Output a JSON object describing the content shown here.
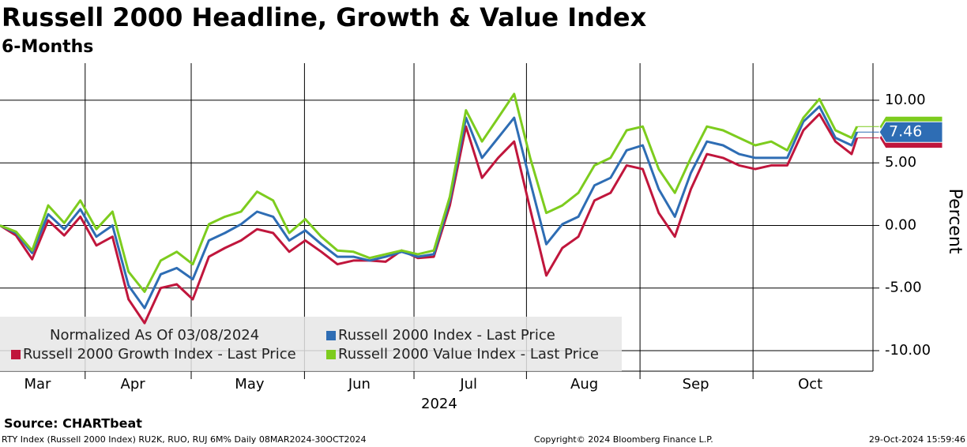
{
  "chart_data": {
    "type": "line",
    "title": "Russell 2000 Headline, Growth & Value Index",
    "subtitle": "6-Months",
    "ylabel": "Percent",
    "xlabel": "2024",
    "note": "Normalized As Of 03/08/2024",
    "source": "Source: CHARTbeat",
    "footer_left": "RTY Index (Russell 2000 Index) RU2K, RUO, RUJ 6M%  Daily 08MAR2024-30OCT2024",
    "footer_center": "Copyright© 2024 Bloomberg Finance L.P.",
    "footer_right": "29-Oct-2024 15:59:46",
    "xlim": [
      0,
      163
    ],
    "xticks": [
      {
        "value": 7,
        "label": "Mar"
      },
      {
        "value": 24.8,
        "label": "Apr"
      },
      {
        "value": 46.6,
        "label": "May"
      },
      {
        "value": 67.1,
        "label": "Jun"
      },
      {
        "value": 87.5,
        "label": "Jul"
      },
      {
        "value": 109.1,
        "label": "Aug"
      },
      {
        "value": 129.9,
        "label": "Sep"
      },
      {
        "value": 151.3,
        "label": "Oct"
      }
    ],
    "ylim": [
      -11.64,
      12.96
    ],
    "yticks": [
      {
        "value": 10,
        "label": "10.00"
      },
      {
        "value": 5,
        "label": "5.00"
      },
      {
        "value": 0,
        "label": "0.00"
      },
      {
        "value": -5,
        "label": "-5.00"
      },
      {
        "value": -10,
        "label": "-10.00"
      }
    ],
    "grid": true,
    "x": [
      0,
      3,
      6,
      9,
      12,
      15,
      18,
      21,
      24,
      27,
      30,
      33,
      36,
      39,
      42,
      45,
      48,
      51,
      54,
      57,
      60,
      63,
      66,
      69,
      72,
      75,
      78,
      81,
      84,
      87,
      90,
      93,
      96,
      99,
      102,
      105,
      108,
      111,
      114,
      117,
      120,
      123,
      126,
      129,
      132,
      135,
      138,
      141,
      144,
      147,
      150,
      153,
      156,
      159,
      160
    ],
    "series": [
      {
        "name": "Russell 2000 Growth Index - Last Price",
        "color": "#c0163c",
        "values": [
          0,
          -0.8,
          -2.7,
          0.4,
          -0.8,
          0.7,
          -1.6,
          -0.9,
          -5.9,
          -7.8,
          -5.0,
          -4.7,
          -5.9,
          -2.5,
          -1.8,
          -1.2,
          -0.3,
          -0.6,
          -2.1,
          -1.2,
          -2.1,
          -3.1,
          -2.8,
          -2.8,
          -2.9,
          -2.0,
          -2.6,
          -2.5,
          1.6,
          7.9,
          3.8,
          5.4,
          6.7,
          1.3,
          -4.0,
          -1.8,
          -0.9,
          2.0,
          2.6,
          4.8,
          4.5,
          1.0,
          -0.9,
          2.9,
          5.7,
          5.4,
          4.8,
          4.5,
          4.8,
          4.8,
          7.6,
          8.9,
          6.7,
          5.7,
          6.99
        ]
      },
      {
        "name": "Russell 2000 Index - Last Price",
        "color": "#2e6db4",
        "values": [
          0,
          -0.6,
          -2.2,
          0.9,
          -0.3,
          1.3,
          -0.9,
          0,
          -4.8,
          -6.6,
          -3.9,
          -3.4,
          -4.3,
          -1.2,
          -0.6,
          0.1,
          1.1,
          0.7,
          -1.2,
          -0.4,
          -1.5,
          -2.5,
          -2.5,
          -2.8,
          -2.5,
          -2.1,
          -2.5,
          -2.3,
          2.0,
          8.6,
          5.4,
          7.0,
          8.6,
          3.5,
          -1.5,
          0.1,
          0.7,
          3.2,
          3.8,
          6.0,
          6.4,
          2.9,
          0.7,
          4.2,
          6.7,
          6.4,
          5.7,
          5.4,
          5.4,
          5.4,
          8.3,
          9.5,
          7.0,
          6.4,
          7.46
        ]
      },
      {
        "name": "Russell 2000 Value Index - Last Price",
        "color": "#7dcc1e",
        "values": [
          0,
          -0.5,
          -2.0,
          1.6,
          0.2,
          2.0,
          -0.3,
          1.1,
          -3.7,
          -5.3,
          -2.8,
          -2.1,
          -3.1,
          0.1,
          0.7,
          1.1,
          2.7,
          2.0,
          -0.6,
          0.5,
          -0.9,
          -2.0,
          -2.1,
          -2.6,
          -2.3,
          -2.0,
          -2.3,
          -2.0,
          2.3,
          9.2,
          6.7,
          8.6,
          10.5,
          5.4,
          1.0,
          1.6,
          2.6,
          4.8,
          5.4,
          7.6,
          7.9,
          4.5,
          2.6,
          5.4,
          7.9,
          7.6,
          7.0,
          6.4,
          6.7,
          6.0,
          8.6,
          10.1,
          7.6,
          7.0,
          7.9
        ]
      }
    ]
  }
}
